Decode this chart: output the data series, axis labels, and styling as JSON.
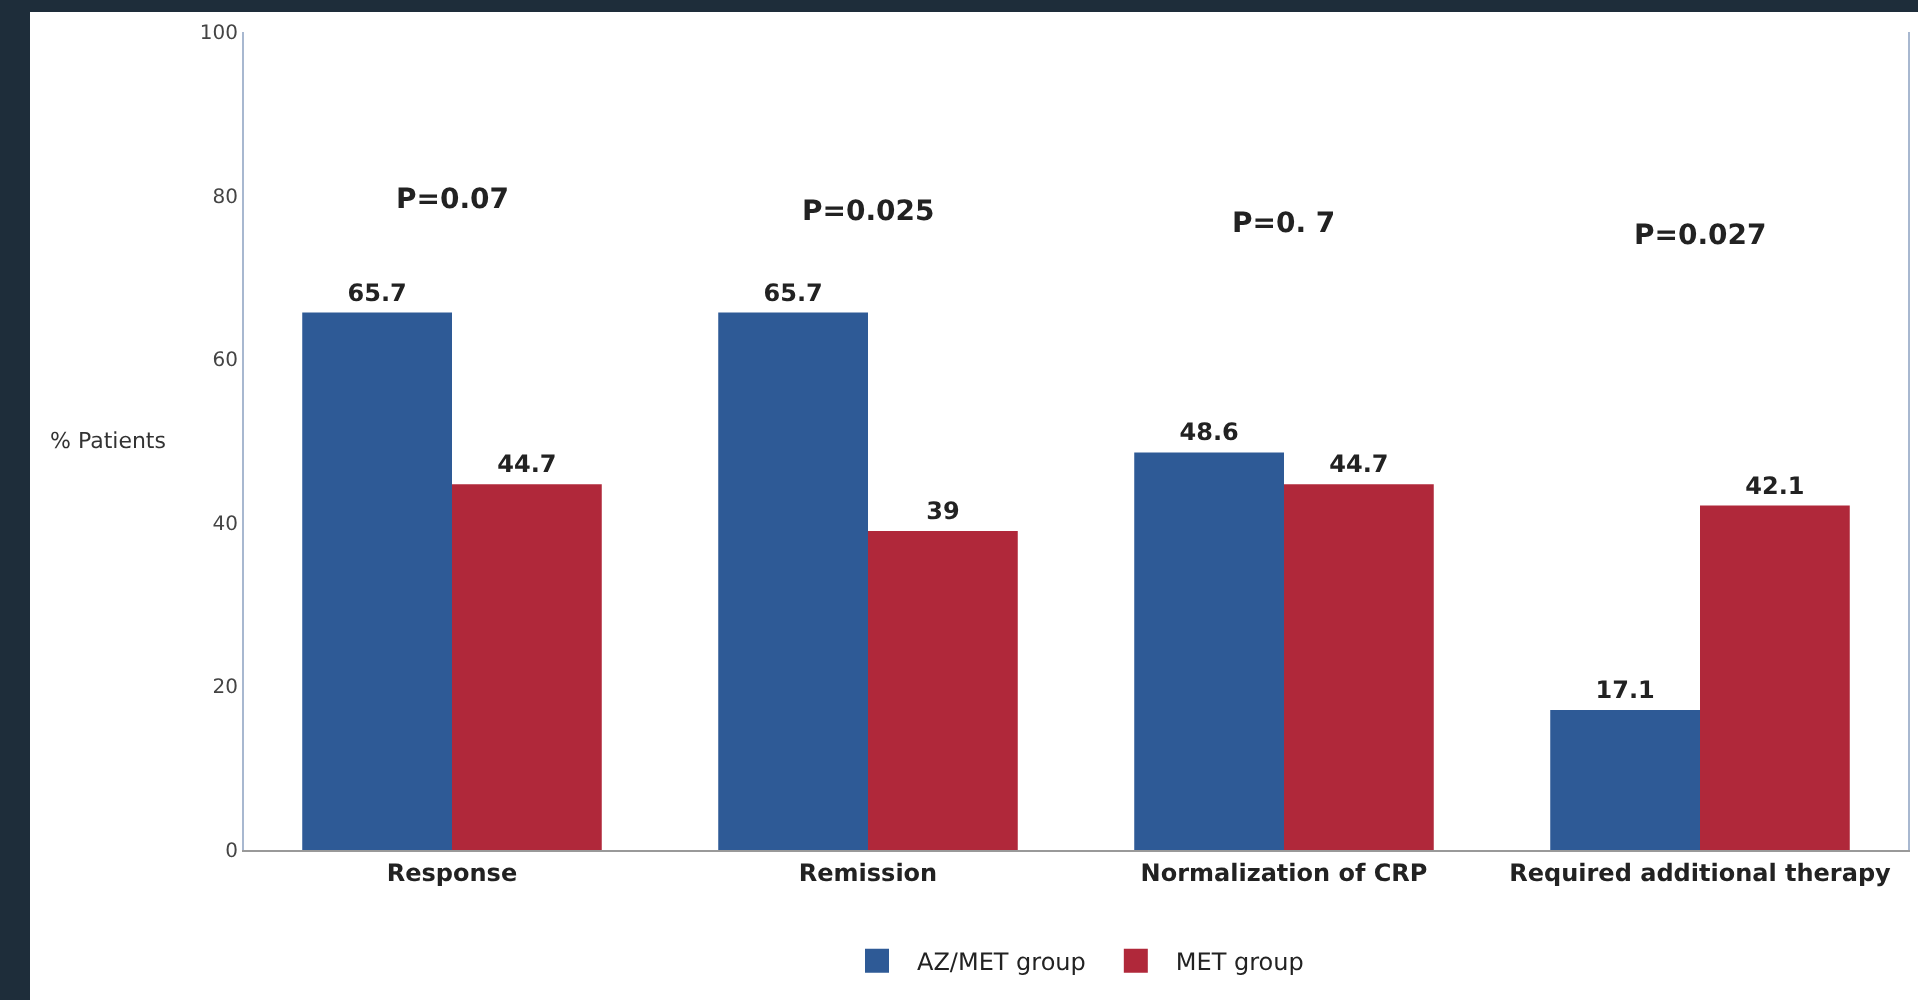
{
  "chart_data": {
    "type": "bar",
    "ylabel": "% Patients",
    "categories": [
      "Response",
      "Remission",
      "Normalization of CRP",
      "Required additional therapy"
    ],
    "series": [
      {
        "name": "AZ/MET group",
        "color": "#2e5a96",
        "values": [
          65.7,
          65.7,
          48.6,
          17.1
        ]
      },
      {
        "name": "MET group",
        "color": "#b0283a",
        "values": [
          44.7,
          39,
          44.7,
          42.1
        ]
      }
    ],
    "ylim": [
      0,
      100
    ],
    "yticks": [
      0,
      20,
      40,
      60,
      80,
      100
    ],
    "grid": false,
    "legend": "bottom",
    "data_labels": true,
    "annotations": [
      "P=0.07",
      "P=0.025",
      "P=0. 7",
      "P=0.027"
    ]
  }
}
